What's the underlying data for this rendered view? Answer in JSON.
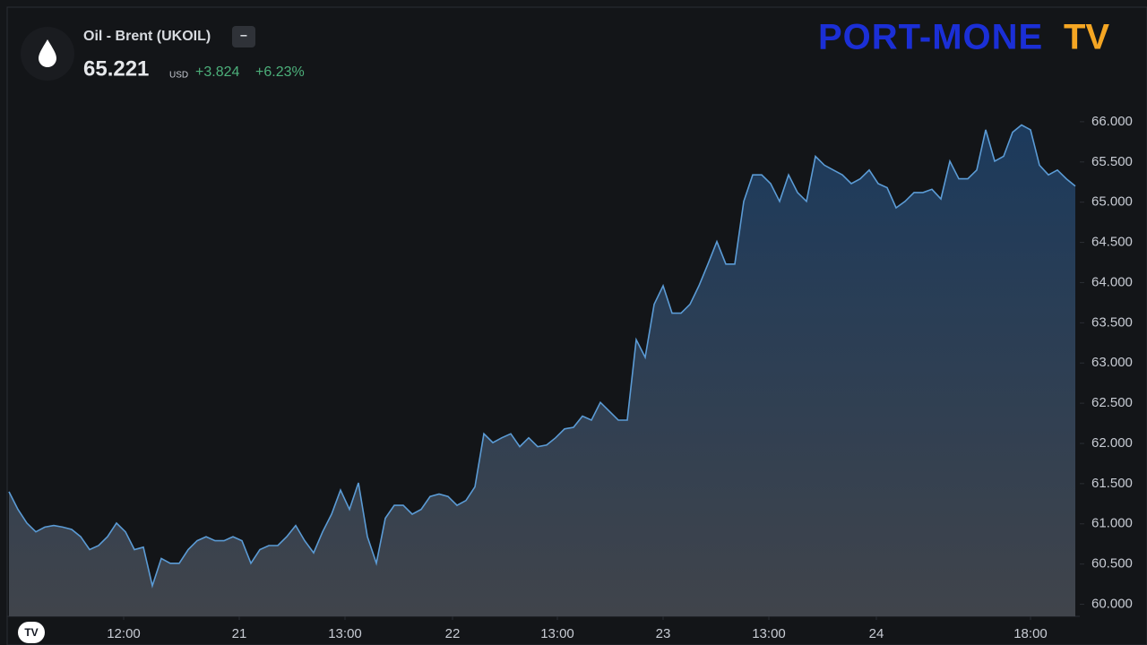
{
  "chart_data": {
    "type": "area",
    "symbol": "Oil - Brent (UKOIL)",
    "interval_button": "−",
    "price": "65.221",
    "currency": "USD",
    "change": "+3.824",
    "change_percent": "+6.23%",
    "watermark": "PORT-MONE",
    "watermark_suffix": "TV",
    "logo": "TV",
    "color": "#5b9bd5",
    "grid": false,
    "x": [
      0,
      1,
      2,
      3,
      4,
      5,
      6,
      7,
      8,
      9,
      10,
      11,
      12,
      13,
      14,
      15,
      16,
      17,
      18,
      19,
      20,
      21,
      22,
      23,
      24,
      25,
      26,
      27,
      28,
      29,
      30,
      31,
      32,
      33,
      34,
      35,
      36,
      37,
      38,
      39,
      40,
      41,
      42,
      43,
      44,
      45,
      46,
      47,
      48,
      49,
      50,
      51,
      52,
      53,
      54,
      55,
      56,
      57,
      58,
      59,
      60,
      61,
      62,
      63,
      64,
      65,
      66,
      67,
      68,
      69,
      70,
      71,
      72,
      73,
      74,
      75,
      76,
      77,
      78,
      79,
      80,
      81,
      82,
      83,
      84,
      85,
      86,
      87,
      88,
      89,
      90,
      91,
      92,
      93,
      94,
      95,
      96,
      97,
      98,
      99,
      100,
      101,
      102,
      103,
      104,
      105,
      106,
      107,
      108,
      109,
      110,
      111,
      112,
      113,
      114,
      115,
      116,
      117,
      118,
      119
    ],
    "values": [
      61.4,
      61.18,
      61.01,
      60.9,
      60.96,
      60.98,
      60.96,
      60.93,
      60.84,
      60.68,
      60.73,
      60.84,
      61.01,
      60.9,
      60.68,
      60.71,
      60.23,
      60.57,
      60.51,
      60.51,
      60.68,
      60.79,
      60.84,
      60.79,
      60.79,
      60.84,
      60.79,
      60.51,
      60.68,
      60.73,
      60.73,
      60.84,
      60.98,
      60.79,
      60.64,
      60.9,
      61.12,
      61.42,
      61.18,
      61.51,
      60.84,
      60.51,
      61.07,
      61.23,
      61.23,
      61.12,
      61.18,
      61.34,
      61.37,
      61.34,
      61.23,
      61.29,
      61.46,
      62.12,
      62.01,
      62.07,
      62.12,
      61.96,
      62.07,
      61.96,
      61.98,
      62.07,
      62.18,
      62.2,
      62.34,
      62.29,
      62.51,
      62.4,
      62.29,
      62.29,
      63.29,
      63.07,
      63.73,
      63.96,
      63.62,
      63.62,
      63.73,
      63.96,
      64.23,
      64.51,
      64.23,
      64.23,
      65.01,
      65.34,
      65.34,
      65.23,
      65.01,
      65.34,
      65.12,
      65.01,
      65.57,
      65.46,
      65.4,
      65.34,
      65.23,
      65.29,
      65.4,
      65.23,
      65.18,
      64.93,
      65.01,
      65.12,
      65.12,
      65.16,
      65.04,
      65.51,
      65.29,
      65.29,
      65.4,
      65.9,
      65.51,
      65.57,
      65.87,
      65.96,
      65.9,
      65.46,
      65.34,
      65.4,
      65.29,
      65.2
    ],
    "xlim": [
      0,
      119
    ],
    "xticks": [
      {
        "value": 12.8,
        "label": "12:00"
      },
      {
        "value": 25.7,
        "label": "21"
      },
      {
        "value": 37.5,
        "label": "13:00"
      },
      {
        "value": 49.5,
        "label": "22"
      },
      {
        "value": 61.2,
        "label": "13:00"
      },
      {
        "value": 73,
        "label": "23"
      },
      {
        "value": 84.8,
        "label": "13:00"
      },
      {
        "value": 96.8,
        "label": "24"
      },
      {
        "value": 114,
        "label": "18:00"
      }
    ],
    "ylim": [
      59.85,
      66.4
    ],
    "yticks": [
      {
        "value": 60,
        "label": "60.000"
      },
      {
        "value": 60.5,
        "label": "60.500"
      },
      {
        "value": 61,
        "label": "61.000"
      },
      {
        "value": 61.5,
        "label": "61.500"
      },
      {
        "value": 62,
        "label": "62.000"
      },
      {
        "value": 62.5,
        "label": "62.500"
      },
      {
        "value": 63,
        "label": "63.000"
      },
      {
        "value": 63.5,
        "label": "63.500"
      },
      {
        "value": 64,
        "label": "64.000"
      },
      {
        "value": 64.5,
        "label": "64.500"
      },
      {
        "value": 65,
        "label": "65.000"
      },
      {
        "value": 65.5,
        "label": "65.500"
      },
      {
        "value": 66,
        "label": "66.000"
      }
    ]
  }
}
